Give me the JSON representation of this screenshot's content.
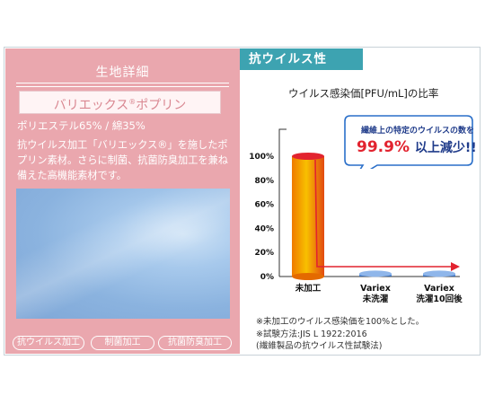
{
  "left_panel": {
    "heading": "生地詳細",
    "fabric_name": "バリエックス",
    "fabric_mark": "®",
    "fabric_name_suffix": "ポプリン",
    "composition": "ポリエステル65% / 綿35%",
    "description": "抗ウイルス加工「バリエックス®」を施したポプリン素材。さらに制菌、抗菌防臭加工を兼ね備えた高機能素材です。",
    "tags": [
      "抗ウイルス加工",
      "制菌加工",
      "抗菌防臭加工"
    ]
  },
  "right_panel": {
    "heading": "抗ウイルス性",
    "callout_line1": "繊維上の特定のウイルスの数を",
    "callout_pct": "99.9%",
    "callout_rest": "以上減少!!",
    "notes": [
      "※未加工のウイルス感染価を100%とした。",
      "※試験方法:JIS L 1922:2016",
      "(繊維製品の抗ウイルス性試験法)"
    ]
  },
  "chart_data": {
    "type": "bar",
    "title": "ウイルス感染価[PFU/mL]の比率",
    "categories": [
      "未加工",
      "Variex 未洗濯",
      "Variex 洗濯10回後"
    ],
    "category_lines": [
      [
        "未加工"
      ],
      [
        "Variex",
        "未洗濯"
      ],
      [
        "Variex",
        "洗濯10回後"
      ]
    ],
    "values": [
      100,
      0.1,
      0.1
    ],
    "ylim": [
      0,
      100
    ],
    "yticks": [
      "0%",
      "20%",
      "40%",
      "60%",
      "80%",
      "100%"
    ],
    "colors": {
      "bar_top": "#f5c400",
      "bar_bottom": "#ef7a00",
      "bar_edge": "#e2232f",
      "reduced": "#4a86d6",
      "arrow": "#e2232f"
    }
  }
}
